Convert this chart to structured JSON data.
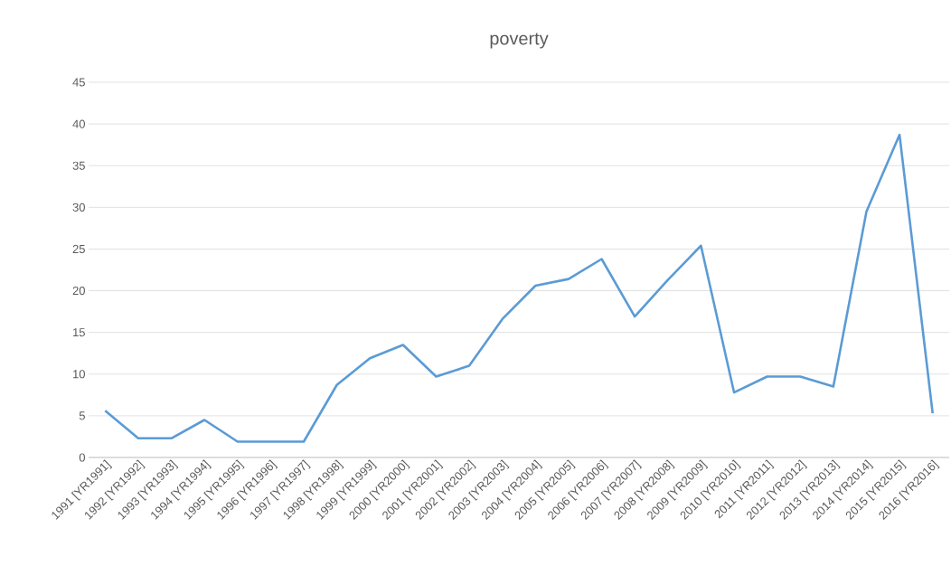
{
  "chart_data": {
    "type": "line",
    "title": "poverty",
    "categories": [
      "1991 [YR1991]",
      "1992 [YR1992]",
      "1993 [YR1993]",
      "1994 [YR1994]",
      "1995 [YR1995]",
      "1996 [YR1996]",
      "1997 [YR1997]",
      "1998 [YR1998]",
      "1999 [YR1999]",
      "2000 [YR2000]",
      "2001 [YR2001]",
      "2002 [YR2002]",
      "2003 [YR2003]",
      "2004 [YR2004]",
      "2005 [YR2005]",
      "2006 [YR2006]",
      "2007 [YR2007]",
      "2008 [YR2008]",
      "2009 [YR2009]",
      "2010 [YR2010]",
      "2011 [YR2011]",
      "2012 [YR2012]",
      "2013 [YR2013]",
      "2014 [YR2014]",
      "2015 [YR2015]",
      "2016 [YR2016]"
    ],
    "values": [
      5.6,
      2.3,
      2.3,
      4.5,
      1.9,
      1.9,
      1.9,
      8.7,
      11.9,
      13.5,
      9.7,
      11.0,
      16.6,
      20.6,
      21.4,
      23.8,
      16.9,
      21.3,
      25.4,
      7.8,
      9.7,
      9.7,
      8.5,
      29.5,
      38.7,
      5.3
    ],
    "color": "#5b9bd5",
    "ylim": [
      0,
      45
    ],
    "yticks": [
      0,
      5,
      10,
      15,
      20,
      25,
      30,
      35,
      40,
      45
    ],
    "grid": "y",
    "marker": "none",
    "line_style": "solid"
  }
}
